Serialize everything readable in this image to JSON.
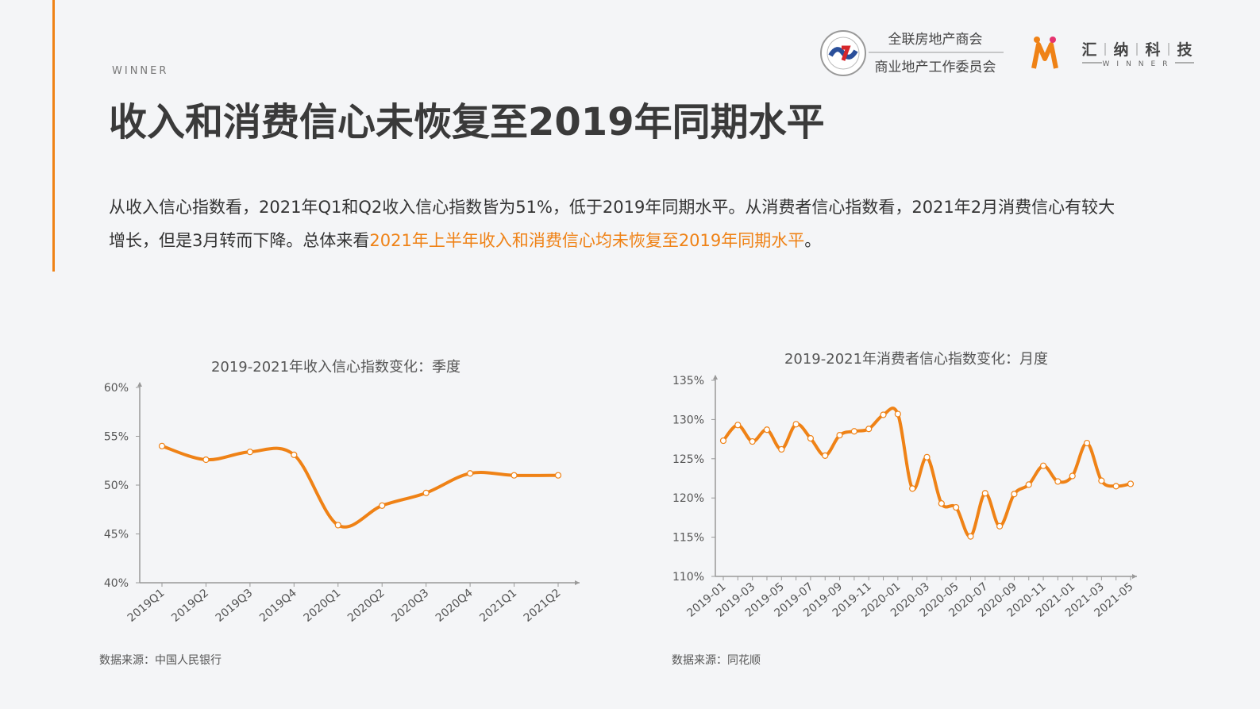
{
  "header": {
    "kicker": "WINNER",
    "title": "收入和消费信心未恢复至2019年同期水平",
    "logo_1_line_1": "全联房地产商会",
    "logo_1_line_2": "商业地产工作委员会",
    "logo_2_chars": [
      "汇",
      "纳",
      "科",
      "技"
    ],
    "logo_2_sub": "WINNER"
  },
  "body": {
    "parts": [
      "从收入信心指数看，2021年Q1和Q2收入信心指数皆为51%，低于2019年同期水平。从消费者信心指数看，2021年2月消费信心有较大增长，但是3月转而下降。总体来看",
      "2021年上半年收入和消费信心均未恢复至2019年同期水平",
      "。"
    ]
  },
  "chart_data": [
    {
      "type": "line",
      "title": "2019-2021年收入信心指数变化：季度",
      "source": "数据来源：中国人民银行",
      "categories": [
        "2019Q1",
        "2019Q2",
        "2019Q3",
        "2019Q4",
        "2020Q1",
        "2020Q2",
        "2020Q3",
        "2020Q4",
        "2021Q1",
        "2021Q2"
      ],
      "values": [
        54,
        52.6,
        53.4,
        53.1,
        45.9,
        47.9,
        49.2,
        51.2,
        51,
        51
      ],
      "color": "#ef8216",
      "ylim": [
        40,
        60
      ],
      "yticks": [
        {
          "value": 40,
          "label": "40%"
        },
        {
          "value": 45,
          "label": "45%"
        },
        {
          "value": 50,
          "label": "50%"
        },
        {
          "value": 55,
          "label": "55%"
        },
        {
          "value": 60,
          "label": "60%"
        }
      ]
    },
    {
      "type": "line",
      "title": "2019-2021年消费者信心指数变化：月度",
      "source": "数据来源：同花顺",
      "categories": [
        "2019-01",
        null,
        "2019-03",
        null,
        "2019-05",
        null,
        "2019-07",
        null,
        "2019-09",
        null,
        "2019-11",
        null,
        "2020-01",
        null,
        "2020-03",
        null,
        "2020-05",
        null,
        "2020-07",
        null,
        "2020-09",
        null,
        "2020-11",
        null,
        "2021-01",
        null,
        "2021-03",
        null,
        "2021-05"
      ],
      "values": [
        127.3,
        129.3,
        127.2,
        128.7,
        126.2,
        129.4,
        127.6,
        125.4,
        128.0,
        128.5,
        128.8,
        130.6,
        130.7,
        121.2,
        125.2,
        119.3,
        118.8,
        115.1,
        120.6,
        116.4,
        120.5,
        121.7,
        124.1,
        122.1,
        122.8,
        127.0,
        122.2,
        121.5,
        121.8
      ],
      "color": "#ef8216",
      "ylim": [
        110,
        135
      ],
      "yticks": [
        {
          "value": 110,
          "label": "110%"
        },
        {
          "value": 115,
          "label": "115%"
        },
        {
          "value": 120,
          "label": "120%"
        },
        {
          "value": 125,
          "label": "125%"
        },
        {
          "value": 130,
          "label": "130%"
        },
        {
          "value": 135,
          "label": "135%"
        }
      ]
    }
  ]
}
